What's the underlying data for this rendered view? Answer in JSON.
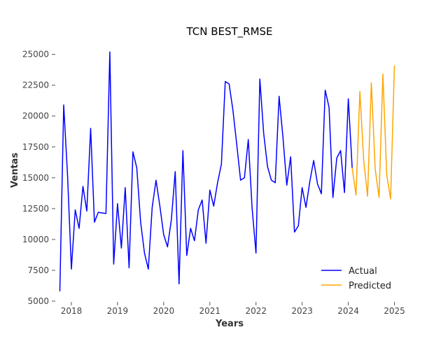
{
  "chart_data": {
    "type": "line",
    "title": "TCN BEST_RMSE",
    "xlabel": "Years",
    "ylabel": "Ventas",
    "xlim": [
      "2017-09-01",
      "2025-04-01"
    ],
    "ylim": [
      5000,
      26000
    ],
    "x_ticks": [
      "2018",
      "2019",
      "2020",
      "2021",
      "2022",
      "2023",
      "2024",
      "2025"
    ],
    "y_ticks": [
      5000,
      7500,
      10000,
      12500,
      15000,
      17500,
      20000,
      22500,
      25000
    ],
    "grid": false,
    "legend_position": "bottom-right",
    "series": [
      {
        "name": "Actual",
        "color": "#0000ff",
        "points": [
          [
            "2017-10-01",
            5800
          ],
          [
            "2017-11-01",
            20900
          ],
          [
            "2017-12-01",
            15200
          ],
          [
            "2018-01-01",
            7600
          ],
          [
            "2018-02-01",
            12400
          ],
          [
            "2018-03-01",
            10900
          ],
          [
            "2018-04-01",
            14300
          ],
          [
            "2018-05-01",
            12300
          ],
          [
            "2018-06-01",
            19000
          ],
          [
            "2018-07-01",
            11400
          ],
          [
            "2018-08-01",
            12200
          ],
          [
            "2018-10-01",
            12100
          ],
          [
            "2018-11-01",
            25200
          ],
          [
            "2018-12-01",
            8000
          ],
          [
            "2019-01-01",
            12900
          ],
          [
            "2019-02-01",
            9300
          ],
          [
            "2019-03-01",
            14200
          ],
          [
            "2019-04-01",
            7700
          ],
          [
            "2019-05-01",
            17100
          ],
          [
            "2019-06-01",
            15800
          ],
          [
            "2019-07-01",
            11400
          ],
          [
            "2019-08-01",
            8900
          ],
          [
            "2019-09-01",
            7600
          ],
          [
            "2019-10-01",
            12600
          ],
          [
            "2019-11-01",
            14800
          ],
          [
            "2019-12-01",
            12700
          ],
          [
            "2020-01-01",
            10400
          ],
          [
            "2020-02-01",
            9400
          ],
          [
            "2020-03-01",
            11600
          ],
          [
            "2020-04-01",
            15500
          ],
          [
            "2020-05-01",
            6400
          ],
          [
            "2020-06-01",
            17200
          ],
          [
            "2020-07-01",
            8700
          ],
          [
            "2020-08-01",
            10900
          ],
          [
            "2020-09-01",
            9900
          ],
          [
            "2020-10-01",
            12400
          ],
          [
            "2020-11-01",
            13200
          ],
          [
            "2020-12-01",
            9700
          ],
          [
            "2021-01-01",
            14000
          ],
          [
            "2021-02-01",
            12700
          ],
          [
            "2021-03-01",
            14600
          ],
          [
            "2021-04-01",
            16100
          ],
          [
            "2021-05-01",
            22800
          ],
          [
            "2021-06-01",
            22600
          ],
          [
            "2021-07-01",
            20500
          ],
          [
            "2021-08-01",
            17700
          ],
          [
            "2021-09-01",
            14800
          ],
          [
            "2021-10-01",
            15000
          ],
          [
            "2021-11-01",
            18100
          ],
          [
            "2021-12-01",
            12500
          ],
          [
            "2022-01-01",
            8900
          ],
          [
            "2022-02-01",
            23000
          ],
          [
            "2022-03-01",
            18600
          ],
          [
            "2022-04-01",
            15900
          ],
          [
            "2022-05-01",
            14800
          ],
          [
            "2022-06-01",
            14600
          ],
          [
            "2022-07-01",
            21600
          ],
          [
            "2022-08-01",
            18300
          ],
          [
            "2022-09-01",
            14400
          ],
          [
            "2022-10-01",
            16700
          ],
          [
            "2022-11-01",
            10600
          ],
          [
            "2022-12-01",
            11100
          ],
          [
            "2023-01-01",
            14200
          ],
          [
            "2023-02-01",
            12600
          ],
          [
            "2023-03-01",
            14700
          ],
          [
            "2023-04-01",
            16400
          ],
          [
            "2023-05-01",
            14500
          ],
          [
            "2023-06-01",
            13700
          ],
          [
            "2023-07-01",
            22100
          ],
          [
            "2023-08-01",
            20700
          ],
          [
            "2023-09-01",
            13400
          ],
          [
            "2023-10-01",
            16600
          ],
          [
            "2023-11-01",
            17200
          ],
          [
            "2023-12-01",
            13800
          ],
          [
            "2024-01-01",
            21400
          ],
          [
            "2024-02-01",
            15800
          ]
        ]
      },
      {
        "name": "Predicted",
        "color": "#ffa500",
        "points": [
          [
            "2024-02-01",
            15800
          ],
          [
            "2024-03-01",
            13600
          ],
          [
            "2024-04-01",
            22000
          ],
          [
            "2024-05-01",
            16400
          ],
          [
            "2024-06-01",
            13500
          ],
          [
            "2024-07-01",
            22700
          ],
          [
            "2024-08-01",
            15700
          ],
          [
            "2024-09-01",
            13400
          ],
          [
            "2024-10-01",
            23400
          ],
          [
            "2024-11-01",
            15200
          ],
          [
            "2024-12-01",
            13300
          ],
          [
            "2025-01-01",
            24100
          ]
        ]
      }
    ]
  }
}
